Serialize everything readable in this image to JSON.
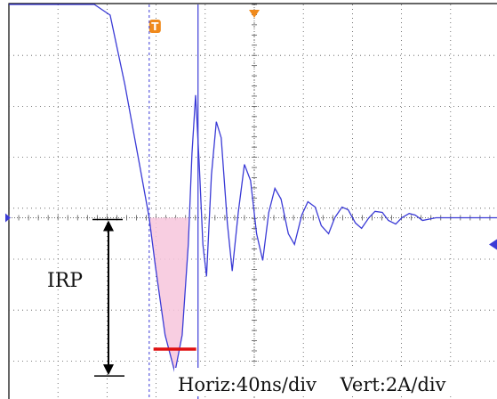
{
  "chart_data": {
    "type": "line",
    "title": "",
    "xlabel": "",
    "ylabel": "",
    "xlim": [
      0,
      400
    ],
    "ylim": [
      -3.4,
      4.0
    ],
    "grid": true,
    "x_unit": "ns",
    "y_unit": "A",
    "series": [
      {
        "x": [
          0,
          70,
          83,
          95,
          107,
          115,
          120,
          128,
          136,
          142,
          147,
          150,
          153,
          156,
          159,
          162,
          166,
          170,
          174,
          179,
          183,
          188,
          193,
          198,
          203,
          208,
          213,
          218,
          223,
          229,
          234,
          240,
          245,
          251,
          256,
          262,
          267,
          273,
          278,
          284,
          289,
          295,
          300,
          306,
          311,
          317,
          322,
          328,
          333,
          339,
          350,
          370,
          390,
          400
        ],
        "y": [
          4.0,
          4.0,
          3.8,
          2.5,
          1.0,
          0.0,
          -0.9,
          -2.2,
          -2.9,
          -2.2,
          -0.5,
          1.2,
          2.3,
          1.0,
          -0.5,
          -1.1,
          0.8,
          1.8,
          1.5,
          -0.1,
          -1.0,
          0.1,
          1.0,
          0.7,
          -0.3,
          -0.8,
          0.1,
          0.55,
          0.35,
          -0.3,
          -0.5,
          0.05,
          0.3,
          0.2,
          -0.15,
          -0.3,
          0.0,
          0.2,
          0.15,
          -0.1,
          -0.2,
          0.0,
          0.12,
          0.1,
          -0.05,
          -0.12,
          0.0,
          0.08,
          0.05,
          -0.05,
          0.0,
          0.0,
          0.0,
          0.0
        ]
      }
    ],
    "annotations": {
      "irp_label": "IRP",
      "settings": "Horiz:40ns/div    Vert:2A/div",
      "trigger_marker": "T",
      "irp_value": -2.9,
      "irp_x": 136,
      "cursor_x": [
        115,
        155
      ]
    }
  }
}
